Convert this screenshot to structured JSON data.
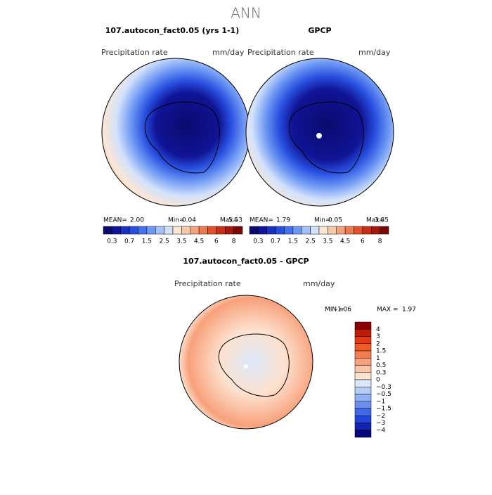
{
  "header": {
    "title": "ANN"
  },
  "panels": [
    {
      "title": "107.autocon_fact0.05 (yrs 1-1)",
      "variable": "Precipitation rate",
      "units": "mm/day",
      "stats": [
        "MEAN=",
        "2.00",
        "Min=",
        "0.04",
        "Max=",
        "5.53"
      ]
    },
    {
      "title": "GPCP",
      "variable": "Precipitation rate",
      "units": "mm/day",
      "stats": [
        "MEAN=",
        "1.79",
        "Min=",
        "0.05",
        "Max=",
        "3.85"
      ]
    },
    {
      "title": "107.autocon_fact0.05 - GPCP",
      "variable": "Precipitation rate",
      "units": "mm/day",
      "stats": [
        "MIN =",
        "-1.06",
        "MAX =",
        "1.97"
      ]
    }
  ],
  "colorbar": {
    "labels": [
      "0.3",
      "0.7",
      "1.5",
      "2.5",
      "3.5",
      "4.5",
      "6",
      "8"
    ],
    "colors": [
      "#0a0a6e",
      "#101496",
      "#1a32c0",
      "#2850e0",
      "#4673ee",
      "#6e98f4",
      "#a3c0f8",
      "#d2e2fb",
      "#fbe6d6",
      "#f8c8aa",
      "#f4a27c",
      "#ee7a52",
      "#e2502c",
      "#c82e1a",
      "#a8160e",
      "#7a0606"
    ]
  },
  "diff_colorbar": {
    "labels": [
      "4",
      "3",
      "2",
      "1.5",
      "1",
      "0.5",
      "0.3",
      "0",
      "−0.3",
      "−0.5",
      "−1",
      "−1.5",
      "−2",
      "−3",
      "−4"
    ],
    "colors": [
      "#8a0000",
      "#c01a08",
      "#e23a14",
      "#f25a26",
      "#f57c4c",
      "#f8a07a",
      "#fac2a6",
      "#fde2d0",
      "#dbe8fb",
      "#b6cdf6",
      "#8fb0f2",
      "#6a8ff0",
      "#4268ea",
      "#2244d8",
      "#1024b0",
      "#06087a"
    ]
  }
}
